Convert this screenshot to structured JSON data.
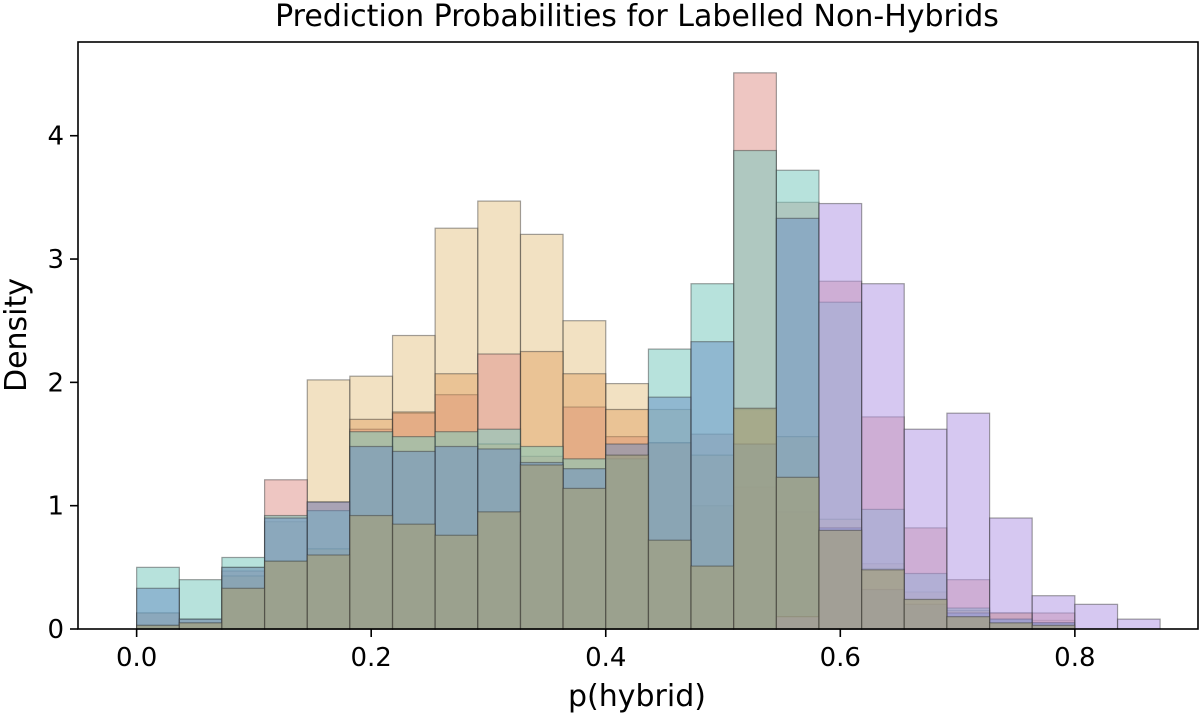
{
  "chart_data": {
    "type": "histogram",
    "title": "Prediction Probabilities for Labelled Non-Hybrids",
    "xlabel": "p(hybrid)",
    "ylabel": "Density",
    "xlim": [
      -0.05,
      0.905
    ],
    "ylim": [
      0,
      4.76
    ],
    "xticks": [
      0.0,
      0.2,
      0.4,
      0.6,
      0.8
    ],
    "xtick_labels": [
      "0.0",
      "0.2",
      "0.4",
      "0.6",
      "0.8"
    ],
    "yticks": [
      0,
      1,
      2,
      3,
      4
    ],
    "ytick_labels": [
      "0",
      "1",
      "2",
      "3",
      "4"
    ],
    "grid": false,
    "bin_edges": [
      0.0,
      0.0364,
      0.0727,
      0.1091,
      0.1455,
      0.1818,
      0.2182,
      0.2545,
      0.2909,
      0.3273,
      0.3636,
      0.4,
      0.4364,
      0.4727,
      0.5091,
      0.5455,
      0.5818,
      0.6182,
      0.6545,
      0.6909,
      0.7273,
      0.7636,
      0.8,
      0.8364,
      0.8727
    ],
    "series": [
      {
        "name": "series-tan",
        "color": "#e8c990",
        "opacity": 0.55,
        "values": [
          0.13,
          0.08,
          0.5,
          0.87,
          2.02,
          2.05,
          2.38,
          3.25,
          3.47,
          3.2,
          2.5,
          1.99,
          1.78,
          1.0,
          1.15,
          0.95,
          0.8,
          0.53,
          0.3,
          0.15,
          0.07,
          0.07,
          0,
          0
        ]
      },
      {
        "name": "series-red",
        "color": "#e09890",
        "opacity": 0.55,
        "values": [
          0.13,
          0.08,
          0.47,
          1.21,
          1.03,
          1.62,
          1.75,
          1.9,
          2.23,
          1.4,
          1.8,
          1.56,
          1.51,
          1.58,
          4.51,
          3.46,
          2.82,
          1.72,
          0.82,
          0.4,
          0.13,
          0.13,
          0,
          0
        ]
      },
      {
        "name": "series-orange",
        "color": "#e0a060",
        "opacity": 0.45,
        "values": [
          0.03,
          0.05,
          0.43,
          0.55,
          0.65,
          1.7,
          1.76,
          2.07,
          1.5,
          2.25,
          2.07,
          1.78,
          1.51,
          1.41,
          1.78,
          1.56,
          0.89,
          0.49,
          0.23,
          0.15,
          0.13,
          0.05,
          0,
          0
        ]
      },
      {
        "name": "series-teal",
        "color": "#7ccac0",
        "opacity": 0.55,
        "values": [
          0.5,
          0.4,
          0.58,
          0.92,
          0.96,
          1.6,
          1.56,
          1.6,
          1.62,
          1.48,
          1.38,
          1.38,
          2.27,
          2.8,
          3.88,
          3.72,
          2.65,
          0.97,
          0.45,
          0.17,
          0.08,
          0.05,
          0,
          0
        ]
      },
      {
        "name": "series-blue",
        "color": "#6a8ec4",
        "opacity": 0.5,
        "values": [
          0.33,
          0.08,
          0.5,
          0.9,
          1.03,
          1.48,
          1.44,
          1.48,
          1.46,
          1.35,
          1.3,
          1.5,
          1.88,
          2.33,
          1.5,
          3.33,
          0.82,
          0.32,
          0.2,
          0.13,
          0.08,
          0.05,
          0,
          0
        ]
      },
      {
        "name": "series-purple",
        "color": "#b49ae6",
        "opacity": 0.55,
        "values": [
          0,
          0,
          0,
          0,
          0,
          0,
          0,
          0,
          0,
          0,
          0,
          0,
          0,
          0,
          0,
          0.1,
          3.45,
          2.8,
          1.62,
          1.75,
          0.9,
          0.27,
          0.2,
          0.08
        ]
      },
      {
        "name": "series-olive",
        "color": "#a2a07e",
        "opacity": 0.7,
        "values": [
          0.03,
          0.05,
          0.33,
          0.55,
          0.6,
          0.92,
          0.85,
          0.76,
          0.95,
          1.33,
          1.14,
          1.41,
          0.72,
          0.51,
          1.79,
          1.23,
          0.8,
          0.48,
          0.24,
          0.1,
          0.05,
          0.03,
          0,
          0
        ]
      }
    ]
  }
}
